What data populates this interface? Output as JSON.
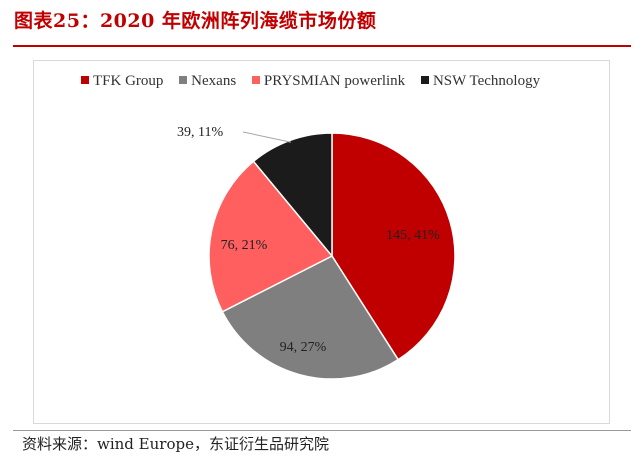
{
  "header": {
    "title": "图表25：2020 年欧洲阵列海缆市场份额"
  },
  "chart_data": {
    "type": "pie",
    "title": "图表25：2020 年欧洲阵列海缆市场份额",
    "categories": [
      "TFK Group",
      "Nexans",
      "PRYSMIAN powerlink",
      "NSW Technology"
    ],
    "values": [
      145,
      94,
      76,
      39
    ],
    "percent_labels": [
      "41%",
      "27%",
      "21%",
      "11%"
    ],
    "data_labels": [
      "145, 41%",
      "94, 27%",
      "76, 21%",
      "39, 11%"
    ],
    "colors": [
      "#c00000",
      "#7f7f7f",
      "#ff5f5f",
      "#1b1b1b"
    ],
    "start_angle_deg": 0,
    "direction": "clockwise",
    "legend_position": "top"
  },
  "legend": {
    "items": [
      {
        "label": "TFK Group",
        "color": "#c00000"
      },
      {
        "label": "Nexans",
        "color": "#7f7f7f"
      },
      {
        "label": "PRYSMIAN powerlink",
        "color": "#ff5f5f"
      },
      {
        "label": "NSW Technology",
        "color": "#1b1b1b"
      }
    ]
  },
  "footer": {
    "source": "资料来源：wind Europe，东证衍生品研究院"
  }
}
